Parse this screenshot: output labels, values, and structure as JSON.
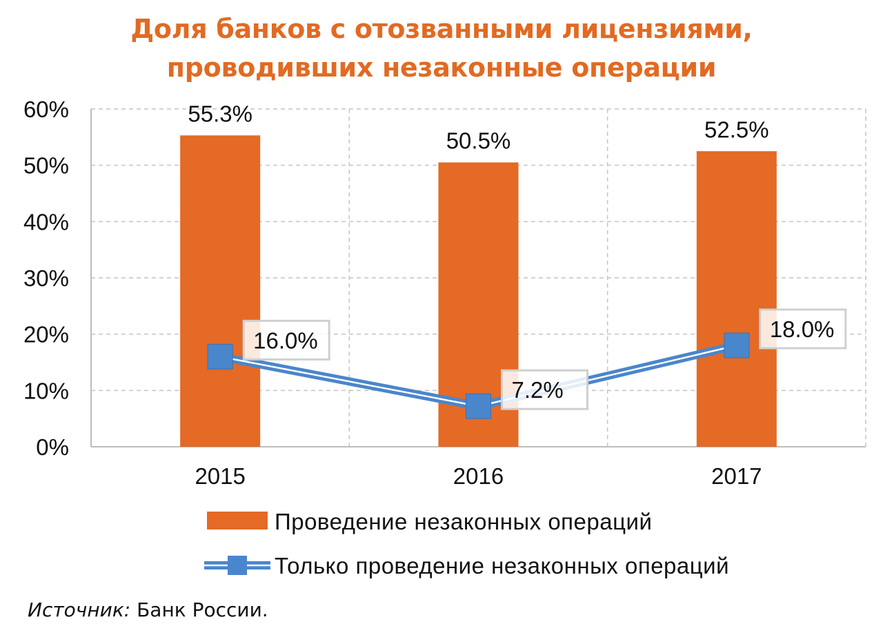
{
  "chart_data": {
    "type": "bar",
    "title_lines": [
      "Доля банков с отозванными лицензиями,",
      "проводивших незаконные операции"
    ],
    "categories": [
      "2015",
      "2016",
      "2017"
    ],
    "ylim": [
      0,
      60
    ],
    "yticks": [
      0,
      10,
      20,
      30,
      40,
      50,
      60
    ],
    "ytick_labels": [
      "0%",
      "10%",
      "20%",
      "30%",
      "40%",
      "50%",
      "60%"
    ],
    "grid": true,
    "series": [
      {
        "name": "Проведение незаконных операций",
        "kind": "bar",
        "color": "#e46a26",
        "values": [
          55.3,
          50.5,
          52.5
        ],
        "labels": [
          "55.3%",
          "50.5%",
          "52.5%"
        ]
      },
      {
        "name": "Только проведение незаконных операций",
        "kind": "line",
        "color": "#4a86cc",
        "values": [
          16.0,
          7.2,
          18.0
        ],
        "labels": [
          "16.0%",
          "7.2%",
          "18.0%"
        ]
      }
    ],
    "legend_position": "bottom"
  },
  "source": {
    "label": "Источник:",
    "text": " Банк России."
  }
}
